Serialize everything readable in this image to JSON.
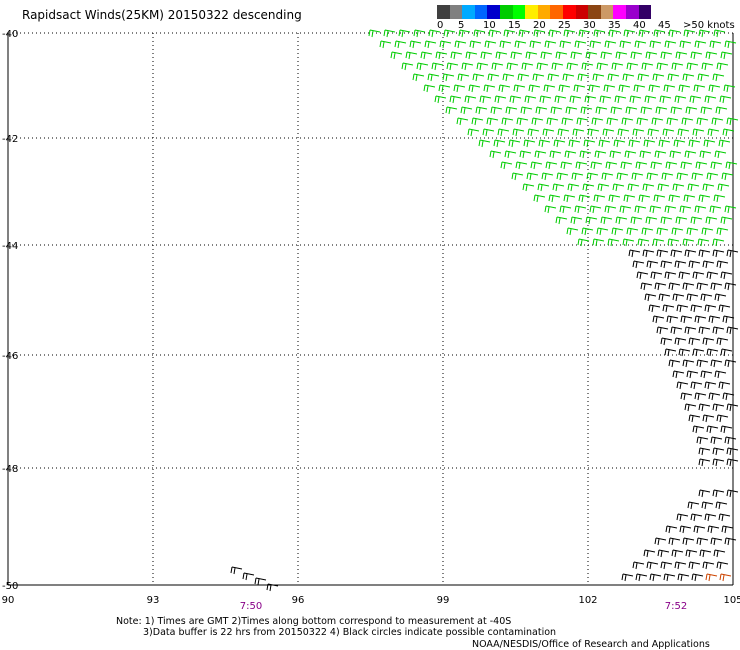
{
  "title": "Rapidsact Winds(25KM) 20150322 descending",
  "legend": {
    "colors": [
      "#404040",
      "#808080",
      "#00aaff",
      "#0066ff",
      "#0000cc",
      "#00cc00",
      "#00ff00",
      "#ffee00",
      "#ffaa00",
      "#ff6600",
      "#ff0000",
      "#cc0000",
      "#8b4513",
      "#cc9966",
      "#ff00ff",
      "#9900cc",
      "#330066"
    ],
    "labels": [
      "0",
      "5",
      "10",
      "15",
      "20",
      "25",
      "30",
      "35",
      "40",
      "45",
      ">50 knots"
    ]
  },
  "map": {
    "lat_labels": [
      "-40",
      "-42",
      "-44",
      "-46",
      "-48",
      "-50"
    ],
    "lon_labels": [
      "90",
      "93",
      "96",
      "99",
      "102",
      "105"
    ],
    "time_labels": [
      "7:50",
      "7:52"
    ],
    "time_color": "#880088"
  },
  "notes": [
    "Note: 1) Times are GMT 2)Times along bottom correspond to measurement at -40S",
    "3)Data buffer is 22 hrs from 20150322 4) Black circles indicate possible contamination"
  ],
  "credit": "NOAA/NESDIS/Office of Research and Applications",
  "barb_colors": {
    "blue": "#0000cc",
    "green": "#00cc00",
    "black": "#000000",
    "orange": "#cc4400"
  }
}
